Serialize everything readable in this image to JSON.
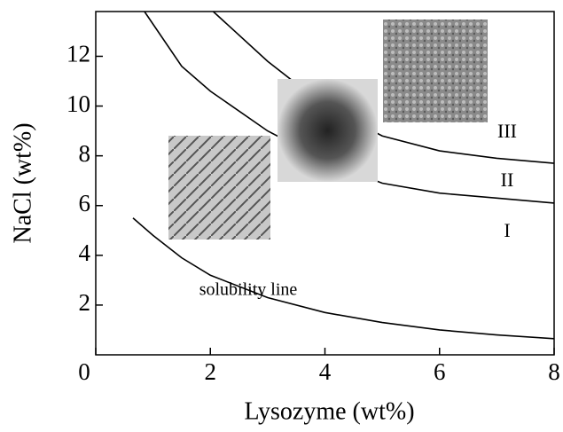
{
  "chart_data": {
    "type": "line",
    "x_label": "Lysozyme (wt%)",
    "y_label": "NaCl (wt%)",
    "xlim": [
      0,
      8
    ],
    "ylim": [
      0,
      13.8
    ],
    "xticks": [
      0,
      2,
      4,
      6,
      8
    ],
    "yticks": [
      2,
      4,
      6,
      8,
      10,
      12
    ],
    "series": [
      {
        "color": "#000000",
        "x": [
          0.65,
          1,
          1.5,
          2,
          3,
          4,
          5,
          6,
          7,
          8
        ],
        "values": [
          5.5,
          4.8,
          3.9,
          3.2,
          2.3,
          1.7,
          1.3,
          1.0,
          0.8,
          0.65
        ]
      },
      {
        "color": "#000000",
        "x": [
          0.85,
          1.5,
          2,
          3,
          4,
          5,
          6,
          7,
          8
        ],
        "values": [
          13.8,
          11.6,
          10.6,
          9.0,
          7.8,
          6.9,
          6.5,
          6.3,
          6.1
        ]
      },
      {
        "color": "#000000",
        "x": [
          2.05,
          3,
          4,
          5,
          6,
          7,
          8
        ],
        "values": [
          13.8,
          11.8,
          10.0,
          8.8,
          8.2,
          7.9,
          7.7
        ]
      }
    ],
    "annotations": [
      "solubility line",
      "I",
      "II",
      "III"
    ]
  }
}
